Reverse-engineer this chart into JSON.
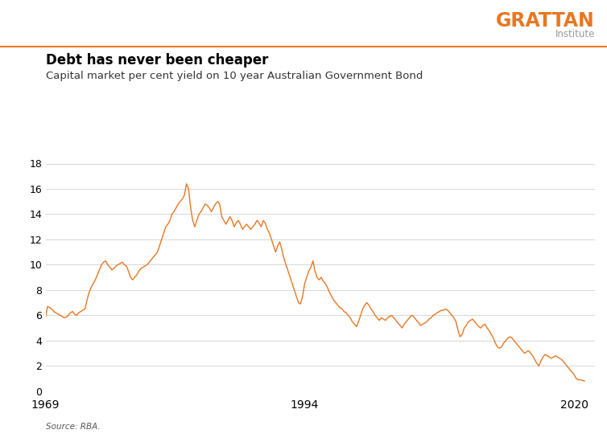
{
  "title": "Debt has never been cheaper",
  "subtitle": "Capital market per cent yield on 10 year Australian Government Bond",
  "source": "Source: RBA.",
  "line_color": "#E87722",
  "background_color": "#ffffff",
  "ylim": [
    0,
    18
  ],
  "yticks": [
    0,
    2,
    4,
    6,
    8,
    10,
    12,
    14,
    16,
    18
  ],
  "xtick_labels": [
    "1969",
    "1994",
    "2020"
  ],
  "grattan_orange": "#E87722",
  "grattan_gray": "#9a9a9a",
  "title_fontsize": 12,
  "subtitle_fontsize": 9.5,
  "source_fontsize": 7.5,
  "series": [
    [
      1969.0,
      5.9
    ],
    [
      1969.2,
      6.7
    ],
    [
      1969.4,
      6.6
    ],
    [
      1969.6,
      6.5
    ],
    [
      1969.8,
      6.3
    ],
    [
      1970.0,
      6.2
    ],
    [
      1970.2,
      6.1
    ],
    [
      1970.4,
      6.0
    ],
    [
      1970.6,
      5.9
    ],
    [
      1970.8,
      5.8
    ],
    [
      1971.0,
      5.85
    ],
    [
      1971.2,
      6.0
    ],
    [
      1971.4,
      6.2
    ],
    [
      1971.6,
      6.3
    ],
    [
      1971.8,
      6.1
    ],
    [
      1972.0,
      6.0
    ],
    [
      1972.2,
      6.2
    ],
    [
      1972.4,
      6.3
    ],
    [
      1972.6,
      6.4
    ],
    [
      1972.8,
      6.5
    ],
    [
      1973.0,
      7.2
    ],
    [
      1973.2,
      7.8
    ],
    [
      1973.4,
      8.2
    ],
    [
      1973.6,
      8.5
    ],
    [
      1973.8,
      8.8
    ],
    [
      1974.0,
      9.2
    ],
    [
      1974.2,
      9.6
    ],
    [
      1974.4,
      10.0
    ],
    [
      1974.6,
      10.2
    ],
    [
      1974.8,
      10.3
    ],
    [
      1975.0,
      10.0
    ],
    [
      1975.2,
      9.8
    ],
    [
      1975.4,
      9.6
    ],
    [
      1975.6,
      9.7
    ],
    [
      1975.8,
      9.9
    ],
    [
      1976.0,
      10.0
    ],
    [
      1976.2,
      10.1
    ],
    [
      1976.4,
      10.2
    ],
    [
      1976.6,
      10.0
    ],
    [
      1976.8,
      9.9
    ],
    [
      1977.0,
      9.5
    ],
    [
      1977.2,
      9.0
    ],
    [
      1977.4,
      8.8
    ],
    [
      1977.6,
      9.0
    ],
    [
      1977.8,
      9.2
    ],
    [
      1978.0,
      9.5
    ],
    [
      1978.2,
      9.7
    ],
    [
      1978.4,
      9.8
    ],
    [
      1978.6,
      9.9
    ],
    [
      1978.8,
      10.0
    ],
    [
      1979.0,
      10.2
    ],
    [
      1979.2,
      10.4
    ],
    [
      1979.4,
      10.6
    ],
    [
      1979.6,
      10.8
    ],
    [
      1979.8,
      11.0
    ],
    [
      1980.0,
      11.5
    ],
    [
      1980.2,
      12.0
    ],
    [
      1980.4,
      12.5
    ],
    [
      1980.6,
      13.0
    ],
    [
      1980.8,
      13.2
    ],
    [
      1981.0,
      13.5
    ],
    [
      1981.2,
      14.0
    ],
    [
      1981.4,
      14.2
    ],
    [
      1981.6,
      14.5
    ],
    [
      1981.8,
      14.8
    ],
    [
      1982.0,
      15.0
    ],
    [
      1982.2,
      15.2
    ],
    [
      1982.4,
      15.5
    ],
    [
      1982.6,
      16.4
    ],
    [
      1982.8,
      16.0
    ],
    [
      1983.0,
      14.5
    ],
    [
      1983.2,
      13.5
    ],
    [
      1983.4,
      13.0
    ],
    [
      1983.6,
      13.5
    ],
    [
      1983.8,
      14.0
    ],
    [
      1984.0,
      14.2
    ],
    [
      1984.2,
      14.5
    ],
    [
      1984.4,
      14.8
    ],
    [
      1984.6,
      14.7
    ],
    [
      1984.8,
      14.5
    ],
    [
      1985.0,
      14.2
    ],
    [
      1985.2,
      14.5
    ],
    [
      1985.4,
      14.8
    ],
    [
      1985.6,
      15.0
    ],
    [
      1985.8,
      14.8
    ],
    [
      1986.0,
      13.8
    ],
    [
      1986.2,
      13.5
    ],
    [
      1986.4,
      13.2
    ],
    [
      1986.6,
      13.5
    ],
    [
      1986.8,
      13.8
    ],
    [
      1987.0,
      13.5
    ],
    [
      1987.2,
      13.0
    ],
    [
      1987.4,
      13.3
    ],
    [
      1987.6,
      13.5
    ],
    [
      1987.8,
      13.2
    ],
    [
      1988.0,
      12.8
    ],
    [
      1988.2,
      13.0
    ],
    [
      1988.4,
      13.2
    ],
    [
      1988.6,
      13.0
    ],
    [
      1988.8,
      12.8
    ],
    [
      1989.0,
      13.0
    ],
    [
      1989.2,
      13.2
    ],
    [
      1989.4,
      13.5
    ],
    [
      1989.6,
      13.3
    ],
    [
      1989.8,
      13.0
    ],
    [
      1990.0,
      13.5
    ],
    [
      1990.2,
      13.3
    ],
    [
      1990.4,
      12.8
    ],
    [
      1990.6,
      12.5
    ],
    [
      1990.8,
      12.0
    ],
    [
      1991.0,
      11.5
    ],
    [
      1991.2,
      11.0
    ],
    [
      1991.4,
      11.5
    ],
    [
      1991.6,
      11.8
    ],
    [
      1991.8,
      11.2
    ],
    [
      1992.0,
      10.5
    ],
    [
      1992.2,
      10.0
    ],
    [
      1992.4,
      9.5
    ],
    [
      1992.6,
      9.0
    ],
    [
      1992.8,
      8.5
    ],
    [
      1993.0,
      8.0
    ],
    [
      1993.2,
      7.5
    ],
    [
      1993.4,
      7.0
    ],
    [
      1993.6,
      6.9
    ],
    [
      1993.8,
      7.5
    ],
    [
      1994.0,
      8.5
    ],
    [
      1994.2,
      9.0
    ],
    [
      1994.4,
      9.5
    ],
    [
      1994.6,
      9.8
    ],
    [
      1994.8,
      10.3
    ],
    [
      1995.0,
      9.5
    ],
    [
      1995.2,
      9.0
    ],
    [
      1995.4,
      8.8
    ],
    [
      1995.6,
      9.0
    ],
    [
      1995.8,
      8.7
    ],
    [
      1996.0,
      8.5
    ],
    [
      1996.2,
      8.2
    ],
    [
      1996.4,
      7.8
    ],
    [
      1996.6,
      7.5
    ],
    [
      1996.8,
      7.2
    ],
    [
      1997.0,
      7.0
    ],
    [
      1997.2,
      6.8
    ],
    [
      1997.4,
      6.6
    ],
    [
      1997.6,
      6.5
    ],
    [
      1997.8,
      6.3
    ],
    [
      1998.0,
      6.2
    ],
    [
      1998.2,
      6.0
    ],
    [
      1998.4,
      5.8
    ],
    [
      1998.6,
      5.5
    ],
    [
      1998.8,
      5.3
    ],
    [
      1999.0,
      5.1
    ],
    [
      1999.2,
      5.5
    ],
    [
      1999.4,
      6.0
    ],
    [
      1999.6,
      6.5
    ],
    [
      1999.8,
      6.8
    ],
    [
      2000.0,
      7.0
    ],
    [
      2000.2,
      6.8
    ],
    [
      2000.4,
      6.5
    ],
    [
      2000.6,
      6.3
    ],
    [
      2000.8,
      6.0
    ],
    [
      2001.0,
      5.8
    ],
    [
      2001.2,
      5.6
    ],
    [
      2001.4,
      5.8
    ],
    [
      2001.6,
      5.7
    ],
    [
      2001.8,
      5.6
    ],
    [
      2002.0,
      5.8
    ],
    [
      2002.2,
      5.9
    ],
    [
      2002.4,
      6.0
    ],
    [
      2002.6,
      5.8
    ],
    [
      2002.8,
      5.6
    ],
    [
      2003.0,
      5.4
    ],
    [
      2003.2,
      5.2
    ],
    [
      2003.4,
      5.0
    ],
    [
      2003.6,
      5.3
    ],
    [
      2003.8,
      5.5
    ],
    [
      2004.0,
      5.7
    ],
    [
      2004.2,
      5.9
    ],
    [
      2004.4,
      6.0
    ],
    [
      2004.6,
      5.8
    ],
    [
      2004.8,
      5.6
    ],
    [
      2005.0,
      5.4
    ],
    [
      2005.2,
      5.2
    ],
    [
      2005.4,
      5.3
    ],
    [
      2005.6,
      5.4
    ],
    [
      2005.8,
      5.5
    ],
    [
      2006.0,
      5.7
    ],
    [
      2006.2,
      5.8
    ],
    [
      2006.4,
      6.0
    ],
    [
      2006.6,
      6.1
    ],
    [
      2006.8,
      6.2
    ],
    [
      2007.0,
      6.3
    ],
    [
      2007.2,
      6.4
    ],
    [
      2007.4,
      6.4
    ],
    [
      2007.6,
      6.5
    ],
    [
      2007.8,
      6.4
    ],
    [
      2008.0,
      6.2
    ],
    [
      2008.2,
      6.0
    ],
    [
      2008.4,
      5.8
    ],
    [
      2008.6,
      5.5
    ],
    [
      2008.8,
      4.8
    ],
    [
      2009.0,
      4.3
    ],
    [
      2009.2,
      4.5
    ],
    [
      2009.4,
      5.0
    ],
    [
      2009.6,
      5.2
    ],
    [
      2009.8,
      5.5
    ],
    [
      2010.0,
      5.6
    ],
    [
      2010.2,
      5.7
    ],
    [
      2010.4,
      5.5
    ],
    [
      2010.6,
      5.3
    ],
    [
      2010.8,
      5.1
    ],
    [
      2011.0,
      5.0
    ],
    [
      2011.2,
      5.2
    ],
    [
      2011.4,
      5.3
    ],
    [
      2011.6,
      5.0
    ],
    [
      2011.8,
      4.8
    ],
    [
      2012.0,
      4.5
    ],
    [
      2012.2,
      4.2
    ],
    [
      2012.4,
      3.8
    ],
    [
      2012.6,
      3.5
    ],
    [
      2012.8,
      3.4
    ],
    [
      2013.0,
      3.5
    ],
    [
      2013.2,
      3.8
    ],
    [
      2013.4,
      4.0
    ],
    [
      2013.6,
      4.2
    ],
    [
      2013.8,
      4.3
    ],
    [
      2014.0,
      4.2
    ],
    [
      2014.2,
      4.0
    ],
    [
      2014.4,
      3.8
    ],
    [
      2014.6,
      3.6
    ],
    [
      2014.8,
      3.4
    ],
    [
      2015.0,
      3.2
    ],
    [
      2015.2,
      3.0
    ],
    [
      2015.4,
      3.1
    ],
    [
      2015.6,
      3.2
    ],
    [
      2015.8,
      3.0
    ],
    [
      2016.0,
      2.8
    ],
    [
      2016.2,
      2.5
    ],
    [
      2016.4,
      2.2
    ],
    [
      2016.6,
      2.0
    ],
    [
      2016.8,
      2.4
    ],
    [
      2017.0,
      2.7
    ],
    [
      2017.2,
      2.9
    ],
    [
      2017.4,
      2.8
    ],
    [
      2017.6,
      2.7
    ],
    [
      2017.8,
      2.6
    ],
    [
      2018.0,
      2.7
    ],
    [
      2018.2,
      2.8
    ],
    [
      2018.4,
      2.7
    ],
    [
      2018.6,
      2.6
    ],
    [
      2018.8,
      2.5
    ],
    [
      2019.0,
      2.3
    ],
    [
      2019.2,
      2.1
    ],
    [
      2019.4,
      1.9
    ],
    [
      2019.6,
      1.7
    ],
    [
      2019.8,
      1.5
    ],
    [
      2020.0,
      1.3
    ],
    [
      2020.2,
      1.0
    ],
    [
      2020.4,
      0.9
    ],
    [
      2020.6,
      0.9
    ],
    [
      2020.8,
      0.85
    ],
    [
      2021.0,
      0.8
    ]
  ]
}
